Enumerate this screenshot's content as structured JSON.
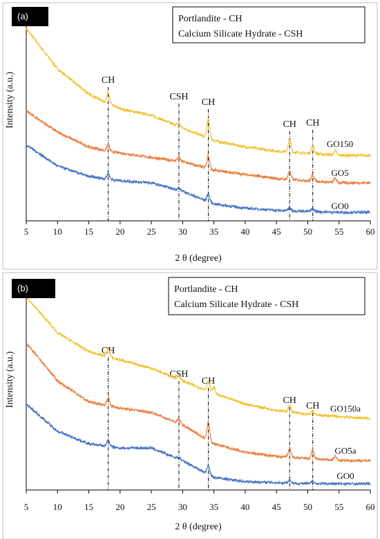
{
  "chart_data": [
    {
      "type": "line",
      "panel_label": "(a)",
      "xlabel": "2 θ (degree)",
      "ylabel": "Intensity (a.u.)",
      "xlim": [
        5,
        60
      ],
      "x_ticks": [
        5,
        10,
        15,
        20,
        25,
        30,
        35,
        40,
        45,
        50,
        55,
        60
      ],
      "y_ticks_shown": false,
      "grid": false,
      "legend": {
        "placement": "top-right",
        "lines": [
          "Portlandite - CH",
          "Calcium Silicate Hydrate - CSH"
        ]
      },
      "peak_markers": [
        {
          "label": "CH",
          "x": 18.1
        },
        {
          "label": "CSH",
          "x": 29.4
        },
        {
          "label": "CH",
          "x": 34.1
        },
        {
          "label": "CH",
          "x": 47.1
        },
        {
          "label": "CH",
          "x": 50.8
        }
      ],
      "series": [
        {
          "name": "GO150",
          "color": "#F2C12E",
          "baseline": [
            [
              5,
              0.91
            ],
            [
              10,
              0.72
            ],
            [
              15,
              0.6
            ],
            [
              20,
              0.53
            ],
            [
              25,
              0.5
            ],
            [
              30,
              0.44
            ],
            [
              35,
              0.38
            ],
            [
              40,
              0.35
            ],
            [
              45,
              0.33
            ],
            [
              50,
              0.32
            ],
            [
              55,
              0.31
            ],
            [
              60,
              0.31
            ]
          ],
          "peaks": [
            [
              18.1,
              0.05
            ],
            [
              29.4,
              0.02
            ],
            [
              34.1,
              0.09
            ],
            [
              47.1,
              0.06
            ],
            [
              50.8,
              0.04
            ],
            [
              54.4,
              0.02
            ]
          ]
        },
        {
          "name": "GO5",
          "color": "#EB7C3C",
          "baseline": [
            [
              5,
              0.52
            ],
            [
              10,
              0.42
            ],
            [
              15,
              0.35
            ],
            [
              18,
              0.33
            ],
            [
              25,
              0.3
            ],
            [
              30,
              0.28
            ],
            [
              35,
              0.24
            ],
            [
              40,
              0.22
            ],
            [
              45,
              0.2
            ],
            [
              50,
              0.19
            ],
            [
              55,
              0.18
            ],
            [
              60,
              0.18
            ]
          ],
          "peaks": [
            [
              18.1,
              0.03
            ],
            [
              29.4,
              0.02
            ],
            [
              34.1,
              0.06
            ],
            [
              47.1,
              0.04
            ],
            [
              50.8,
              0.03
            ],
            [
              54.4,
              0.02
            ]
          ]
        },
        {
          "name": "GO0",
          "color": "#4472C4",
          "baseline": [
            [
              5,
              0.36
            ],
            [
              10,
              0.26
            ],
            [
              15,
              0.21
            ],
            [
              20,
              0.19
            ],
            [
              25,
              0.18
            ],
            [
              30,
              0.14
            ],
            [
              35,
              0.08
            ],
            [
              40,
              0.06
            ],
            [
              45,
              0.05
            ],
            [
              50,
              0.045
            ],
            [
              55,
              0.04
            ],
            [
              60,
              0.04
            ]
          ],
          "peaks": [
            [
              18.1,
              0.025
            ],
            [
              29.4,
              0.01
            ],
            [
              34.1,
              0.035
            ],
            [
              47.1,
              0.015
            ],
            [
              50.8,
              0.012
            ]
          ]
        }
      ]
    },
    {
      "type": "line",
      "panel_label": "(b)",
      "xlabel": "2 θ (degree)",
      "ylabel": "Intensity (a.u.)",
      "xlim": [
        5,
        60
      ],
      "x_ticks": [
        5,
        10,
        15,
        20,
        25,
        30,
        35,
        40,
        45,
        50,
        55,
        60
      ],
      "y_ticks_shown": false,
      "grid": false,
      "legend": {
        "placement": "top-right",
        "lines": [
          "Portlandite - CH",
          "Calcium Silicate Hydrate - CSH"
        ]
      },
      "peak_markers": [
        {
          "label": "CH",
          "x": 18.1
        },
        {
          "label": "CSH",
          "x": 29.4
        },
        {
          "label": "CH",
          "x": 34.1
        },
        {
          "label": "CH",
          "x": 47.1
        },
        {
          "label": "CH",
          "x": 50.8
        }
      ],
      "series": [
        {
          "name": "GO150a",
          "color": "#F2C12E",
          "baseline": [
            [
              5,
              0.92
            ],
            [
              10,
              0.75
            ],
            [
              15,
              0.66
            ],
            [
              20,
              0.62
            ],
            [
              25,
              0.58
            ],
            [
              30,
              0.52
            ],
            [
              35,
              0.46
            ],
            [
              40,
              0.41
            ],
            [
              45,
              0.38
            ],
            [
              50,
              0.36
            ],
            [
              55,
              0.35
            ],
            [
              60,
              0.34
            ]
          ],
          "peaks": [
            [
              18.1,
              0.04
            ],
            [
              29.4,
              0.02
            ],
            [
              34.1,
              0.05
            ],
            [
              35.0,
              0.03
            ],
            [
              47.1,
              0.03
            ],
            [
              50.8,
              0.02
            ]
          ]
        },
        {
          "name": "GO5a",
          "color": "#EB7C3C",
          "baseline": [
            [
              5,
              0.7
            ],
            [
              10,
              0.52
            ],
            [
              15,
              0.42
            ],
            [
              20,
              0.39
            ],
            [
              25,
              0.37
            ],
            [
              30,
              0.31
            ],
            [
              35,
              0.22
            ],
            [
              40,
              0.18
            ],
            [
              45,
              0.16
            ],
            [
              50,
              0.15
            ],
            [
              55,
              0.14
            ],
            [
              60,
              0.14
            ]
          ],
          "peaks": [
            [
              18.1,
              0.04
            ],
            [
              29.4,
              0.02
            ],
            [
              34.1,
              0.09
            ],
            [
              47.1,
              0.04
            ],
            [
              50.8,
              0.04
            ],
            [
              54.4,
              0.02
            ]
          ]
        },
        {
          "name": "GO0",
          "color": "#4472C4",
          "baseline": [
            [
              5,
              0.41
            ],
            [
              10,
              0.28
            ],
            [
              15,
              0.22
            ],
            [
              20,
              0.2
            ],
            [
              25,
              0.2
            ],
            [
              30,
              0.14
            ],
            [
              35,
              0.06
            ],
            [
              40,
              0.04
            ],
            [
              45,
              0.035
            ],
            [
              50,
              0.03
            ],
            [
              55,
              0.03
            ],
            [
              60,
              0.03
            ]
          ],
          "peaks": [
            [
              18.1,
              0.03
            ],
            [
              29.4,
              0.01
            ],
            [
              34.1,
              0.04
            ],
            [
              47.1,
              0.015
            ],
            [
              50.8,
              0.012
            ]
          ]
        }
      ]
    }
  ]
}
